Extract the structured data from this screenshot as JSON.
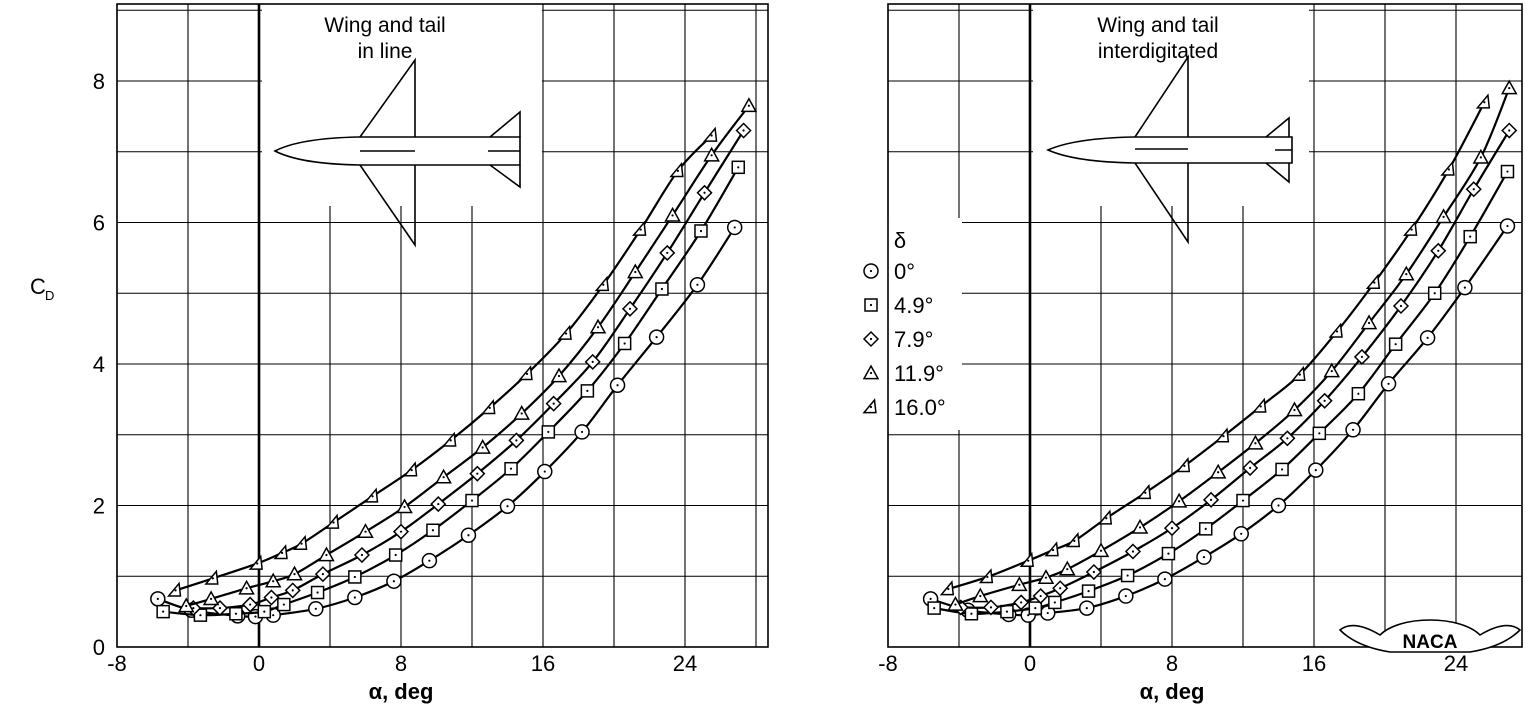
{
  "chart_data": [
    {
      "type": "line",
      "title": "Wing and tail in line",
      "title_lines": [
        "Wing and tail",
        "in line"
      ],
      "xlabel": "α, deg",
      "ylabel": "C_D",
      "xlim": [
        -8,
        28
      ],
      "ylim": [
        0,
        9
      ],
      "xticks": [
        "-8",
        "0",
        "8",
        "16",
        "24"
      ],
      "yticks": [
        "0",
        "2",
        "4",
        "6",
        "8"
      ],
      "grid": true,
      "series": [
        {
          "name": "0°",
          "marker": "circle",
          "x": [
            -5.7,
            -3.8,
            -1.2,
            -0.2,
            0.8,
            3.2,
            5.4,
            7.6,
            9.6,
            11.8,
            14.0,
            16.1,
            18.2,
            20.2,
            22.4,
            24.7,
            26.8
          ],
          "y": [
            0.68,
            0.52,
            0.44,
            0.43,
            0.45,
            0.54,
            0.7,
            0.93,
            1.22,
            1.58,
            1.99,
            2.48,
            3.04,
            3.7,
            4.38,
            5.12,
            5.93
          ]
        },
        {
          "name": "4.9°",
          "marker": "square",
          "x": [
            -5.4,
            -3.3,
            -1.3,
            0.3,
            1.4,
            3.3,
            5.4,
            7.7,
            9.8,
            12.0,
            14.2,
            16.3,
            18.5,
            20.6,
            22.7,
            24.9,
            27.0
          ],
          "y": [
            0.5,
            0.45,
            0.47,
            0.5,
            0.6,
            0.77,
            0.99,
            1.3,
            1.65,
            2.07,
            2.52,
            3.04,
            3.62,
            4.29,
            5.06,
            5.88,
            6.78
          ]
        },
        {
          "name": "7.9°",
          "marker": "diamond",
          "x": [
            -3.7,
            -2.2,
            -0.5,
            0.7,
            1.9,
            3.6,
            5.8,
            8.0,
            10.1,
            12.3,
            14.5,
            16.6,
            18.8,
            20.9,
            23.0,
            25.1,
            27.3
          ],
          "y": [
            0.55,
            0.55,
            0.6,
            0.7,
            0.8,
            1.03,
            1.3,
            1.63,
            2.02,
            2.45,
            2.92,
            3.44,
            4.03,
            4.78,
            5.57,
            6.42,
            7.3
          ]
        },
        {
          "name": "11.9°",
          "marker": "triangle",
          "x": [
            -4.1,
            -2.7,
            -0.7,
            0.8,
            2.0,
            3.8,
            6.0,
            8.2,
            10.4,
            12.6,
            14.8,
            16.9,
            19.1,
            21.2,
            23.3,
            25.5,
            27.6
          ],
          "y": [
            0.58,
            0.68,
            0.83,
            0.93,
            1.03,
            1.3,
            1.63,
            1.98,
            2.4,
            2.82,
            3.3,
            3.83,
            4.52,
            5.3,
            6.1,
            6.95,
            7.65
          ]
        },
        {
          "name": "16.0°",
          "marker": "half-triangle",
          "x": [
            -4.7,
            -2.6,
            -0.1,
            1.3,
            2.4,
            4.2,
            6.4,
            8.6,
            10.8,
            13.0,
            15.1,
            17.3,
            19.4,
            21.5,
            23.6,
            25.5
          ],
          "y": [
            0.8,
            0.97,
            1.18,
            1.33,
            1.46,
            1.76,
            2.13,
            2.5,
            2.92,
            3.38,
            3.86,
            4.43,
            5.12,
            5.9,
            6.73,
            7.23
          ]
        }
      ]
    },
    {
      "type": "line",
      "title": "Wing and tail interdigitated",
      "title_lines": [
        "Wing and tail",
        "interdigitated"
      ],
      "xlabel": "α, deg",
      "ylabel": "",
      "xlim": [
        -8,
        27
      ],
      "ylim": [
        0,
        9
      ],
      "xticks": [
        "-8",
        "0",
        "8",
        "16",
        "24"
      ],
      "yticks": [],
      "grid": true,
      "series": [
        {
          "name": "0°",
          "marker": "circle",
          "x": [
            -5.6,
            -3.5,
            -1.2,
            -0.1,
            1.0,
            3.2,
            5.4,
            7.6,
            9.8,
            11.9,
            14.0,
            16.1,
            18.2,
            20.2,
            22.4,
            24.5,
            26.9
          ],
          "y": [
            0.68,
            0.52,
            0.46,
            0.45,
            0.48,
            0.55,
            0.72,
            0.96,
            1.27,
            1.6,
            2.0,
            2.5,
            3.07,
            3.72,
            4.37,
            5.08,
            5.95
          ]
        },
        {
          "name": "4.9°",
          "marker": "square",
          "x": [
            -5.4,
            -3.3,
            -1.3,
            0.3,
            1.4,
            3.3,
            5.5,
            7.8,
            9.9,
            12.0,
            14.2,
            16.3,
            18.5,
            20.6,
            22.8,
            24.8,
            26.9
          ],
          "y": [
            0.55,
            0.47,
            0.5,
            0.55,
            0.63,
            0.79,
            1.01,
            1.32,
            1.67,
            2.07,
            2.51,
            3.02,
            3.58,
            4.28,
            5.0,
            5.8,
            6.72
          ]
        },
        {
          "name": "7.9°",
          "marker": "diamond",
          "x": [
            -3.9,
            -2.2,
            -0.5,
            0.6,
            1.7,
            3.6,
            5.8,
            8.0,
            10.2,
            12.4,
            14.5,
            16.6,
            18.7,
            20.9,
            23.0,
            25.0,
            27.0
          ],
          "y": [
            0.56,
            0.56,
            0.63,
            0.72,
            0.83,
            1.06,
            1.35,
            1.68,
            2.08,
            2.53,
            2.95,
            3.48,
            4.1,
            4.82,
            5.6,
            6.47,
            7.3
          ]
        },
        {
          "name": "11.9°",
          "marker": "triangle",
          "x": [
            -4.2,
            -2.8,
            -0.6,
            0.9,
            2.1,
            4.0,
            6.2,
            8.4,
            10.6,
            12.7,
            14.9,
            17.0,
            19.1,
            21.2,
            23.3,
            25.4,
            27.0
          ],
          "y": [
            0.6,
            0.72,
            0.88,
            0.98,
            1.1,
            1.36,
            1.69,
            2.06,
            2.47,
            2.88,
            3.35,
            3.9,
            4.58,
            5.27,
            6.08,
            6.92,
            7.9
          ]
        },
        {
          "name": "16.0°",
          "marker": "half-triangle",
          "x": [
            -4.6,
            -2.4,
            -0.1,
            1.3,
            2.5,
            4.3,
            6.5,
            8.7,
            10.9,
            13.0,
            15.2,
            17.3,
            19.4,
            21.5,
            23.6,
            25.6
          ],
          "y": [
            0.82,
            0.99,
            1.22,
            1.37,
            1.5,
            1.82,
            2.18,
            2.56,
            2.98,
            3.4,
            3.85,
            4.46,
            5.15,
            5.9,
            6.75,
            7.7
          ]
        }
      ]
    }
  ],
  "legend": {
    "heading": "δ",
    "placement": "center, between panels",
    "entries": [
      {
        "label": "0°",
        "marker": "circle"
      },
      {
        "label": "4.9°",
        "marker": "square"
      },
      {
        "label": "7.9°",
        "marker": "diamond"
      },
      {
        "label": "11.9°",
        "marker": "triangle"
      },
      {
        "label": "16.0°",
        "marker": "half-triangle"
      }
    ]
  },
  "y_axis_label": {
    "symbol": "C",
    "subscript": "D"
  },
  "logo_text": "NACA",
  "colors": {
    "ink": "#000000",
    "background": "#ffffff"
  }
}
